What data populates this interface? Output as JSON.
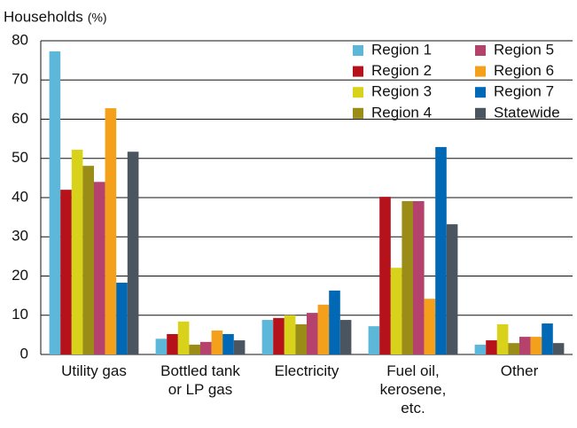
{
  "chart_data": {
    "type": "bar",
    "y_label": "Households",
    "y_unit": "(%)",
    "categories": [
      "Utility gas",
      "Bottled tank or LP gas",
      "Electricity",
      "Fuel oil, kerosene, etc.",
      "Other"
    ],
    "series": [
      {
        "name": "Region 1",
        "color": "#5db7d9",
        "values": [
          77.3,
          4.0,
          8.8,
          7.2,
          2.5
        ]
      },
      {
        "name": "Region 2",
        "color": "#b5121b",
        "values": [
          42.0,
          5.2,
          9.3,
          40.2,
          3.6
        ]
      },
      {
        "name": "Region 3",
        "color": "#d9d21a",
        "values": [
          52.2,
          8.4,
          10.0,
          22.1,
          7.7
        ]
      },
      {
        "name": "Region 4",
        "color": "#9a8c16",
        "values": [
          48.1,
          2.5,
          7.7,
          39.1,
          2.9
        ]
      },
      {
        "name": "Region 5",
        "color": "#b5426d",
        "values": [
          44.0,
          3.2,
          10.6,
          39.1,
          4.5
        ]
      },
      {
        "name": "Region 6",
        "color": "#f5a01a",
        "values": [
          62.8,
          6.1,
          12.7,
          14.2,
          4.5
        ]
      },
      {
        "name": "Region 7",
        "color": "#0068b5",
        "values": [
          18.3,
          5.2,
          16.3,
          52.9,
          7.9
        ]
      },
      {
        "name": "Statewide",
        "color": "#4a5560",
        "values": [
          51.7,
          3.6,
          8.8,
          33.2,
          2.9
        ]
      }
    ],
    "ylim": [
      0,
      80
    ],
    "yticks": [
      0,
      10,
      20,
      30,
      40,
      50,
      60,
      70,
      80
    ],
    "grid": true,
    "legend": "top-right"
  }
}
